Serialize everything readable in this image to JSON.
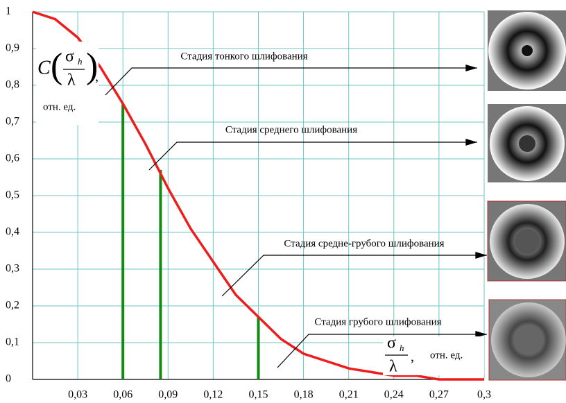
{
  "chart_data": {
    "type": "line",
    "x": [
      0,
      0.015,
      0.03,
      0.045,
      0.06,
      0.075,
      0.09,
      0.105,
      0.12,
      0.135,
      0.15,
      0.165,
      0.18,
      0.195,
      0.21,
      0.225,
      0.24,
      0.255,
      0.27,
      0.285,
      0.3
    ],
    "values": [
      1,
      0.98,
      0.93,
      0.85,
      0.75,
      0.64,
      0.52,
      0.41,
      0.32,
      0.23,
      0.17,
      0.11,
      0.07,
      0.05,
      0.03,
      0.02,
      0.01,
      0.01,
      0,
      0,
      0
    ],
    "color": "#ee1c1c",
    "markers": {
      "x": [
        0.06,
        0.085,
        0.15
      ],
      "values": [
        0.75,
        0.57,
        0.17
      ],
      "color": "#138a13"
    },
    "xlim": [
      0,
      0.3
    ],
    "ylim": [
      0,
      1
    ],
    "xticks": [
      {
        "value": 0.03,
        "label": "0,03"
      },
      {
        "value": 0.06,
        "label": "0,06"
      },
      {
        "value": 0.09,
        "label": "0,09"
      },
      {
        "value": 0.12,
        "label": "0,12"
      },
      {
        "value": 0.15,
        "label": "0,15"
      },
      {
        "value": 0.18,
        "label": "0,18"
      },
      {
        "value": 0.21,
        "label": "0,21"
      },
      {
        "value": 0.24,
        "label": "0,24"
      },
      {
        "value": 0.27,
        "label": "0,27"
      },
      {
        "value": 0.3,
        "label": "0,3"
      }
    ],
    "yticks": [
      0,
      {
        "value": 0.1,
        "label": "0,1"
      },
      {
        "value": 0.2,
        "label": "0,2"
      },
      {
        "value": 0.3,
        "label": "0,3"
      },
      {
        "value": 0.4,
        "label": "0,4"
      },
      {
        "value": 0.5,
        "label": "0,5"
      },
      {
        "value": 0.6,
        "label": "0,6"
      },
      {
        "value": 0.7,
        "label": "0,7"
      },
      {
        "value": 0.8,
        "label": "0,8"
      },
      {
        "value": 0.9,
        "label": "0,9"
      },
      1
    ],
    "grid": true,
    "y_label": {
      "symbol": "C",
      "numerator": "σ",
      "subscript": "h",
      "denominator": "λ",
      "separator": ",",
      "unit": "отн. ед."
    },
    "x_label": {
      "numerator": "σ",
      "subscript": "h",
      "denominator": "λ",
      "separator": ",",
      "unit": "отн. ед."
    },
    "annotations": [
      "Стадия тонкого шлифования",
      "Стадия среднего шлифования",
      "Стадия средне-грубого шлифования",
      "Стадия грубого шлифования"
    ]
  }
}
